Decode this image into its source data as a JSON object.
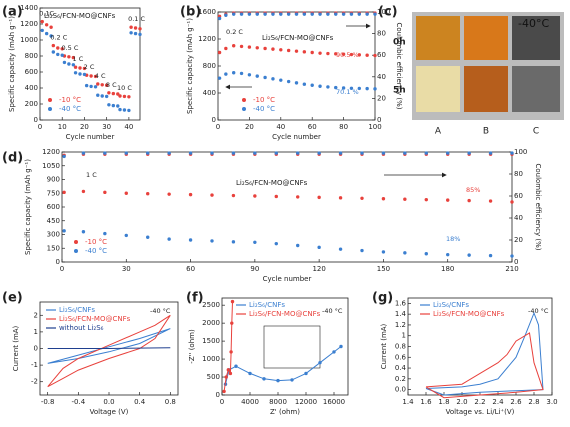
{
  "chart_data": [
    {
      "type": "line",
      "panel_label": "(a)",
      "title": "Li₂S₆/FCN-MO@CNFs",
      "xlabel": "Cycle number",
      "ylabel": "Specific capacity (mAh g⁻¹)",
      "xlim": [
        0,
        45
      ],
      "xticks": [
        0,
        10,
        20,
        30,
        40
      ],
      "ylim": [
        0,
        1400
      ],
      "yticks": [
        0,
        200,
        400,
        600,
        800,
        1000,
        1200,
        1400
      ],
      "marker": true,
      "line": false,
      "legend": "lower left",
      "annotations": [
        "0.1C",
        "0.2 C",
        "0.5 C",
        "1 C",
        "2 C",
        "4 C",
        "8 C",
        "10 C",
        "0.1 C"
      ],
      "series": [
        {
          "name": "-10 °C",
          "color": "#e8413c",
          "x": [
            1,
            3,
            5,
            6,
            8,
            10,
            11,
            13,
            15,
            16,
            18,
            20,
            21,
            23,
            25,
            26,
            28,
            30,
            31,
            33,
            35,
            36,
            38,
            40,
            41,
            43,
            45
          ],
          "values": [
            1230,
            1190,
            1160,
            930,
            900,
            890,
            800,
            790,
            780,
            660,
            650,
            645,
            560,
            550,
            545,
            450,
            440,
            435,
            340,
            330,
            325,
            300,
            295,
            290,
            1160,
            1150,
            1140
          ]
        },
        {
          "name": "-40 °C",
          "color": "#3b7fd0",
          "x": [
            1,
            3,
            5,
            6,
            8,
            10,
            11,
            13,
            15,
            16,
            18,
            20,
            21,
            23,
            25,
            26,
            28,
            30,
            31,
            33,
            35,
            36,
            38,
            40,
            41,
            43,
            45
          ],
          "values": [
            1120,
            1080,
            1050,
            850,
            820,
            810,
            720,
            700,
            690,
            590,
            575,
            570,
            430,
            420,
            415,
            310,
            300,
            295,
            190,
            180,
            175,
            130,
            125,
            120,
            1090,
            1080,
            1070
          ]
        }
      ]
    },
    {
      "type": "line",
      "panel_label": "(b)",
      "title": "Li₂S₆/FCN-MO@CNFs",
      "xlabel": "Cycle number",
      "ylabel": "Specific capacity (mAh g⁻¹)",
      "y2label": "Coulombic efficiency (%)",
      "xlim": [
        0,
        100
      ],
      "xticks": [
        0,
        20,
        40,
        60,
        80,
        100
      ],
      "ylim": [
        0,
        1600
      ],
      "yticks": [
        0,
        400,
        800,
        1200,
        1600
      ],
      "y2lim": [
        0,
        100
      ],
      "y2ticks": [
        0,
        20,
        40,
        60,
        80,
        100
      ],
      "marker": true,
      "line": false,
      "legend": "lower left",
      "annotations": [
        "0.2 C",
        "90.5 %",
        "70.1 %"
      ],
      "series": [
        {
          "name": "-10 °C",
          "color": "#e8413c",
          "x": [
            1,
            5,
            10,
            15,
            20,
            25,
            30,
            35,
            40,
            45,
            50,
            55,
            60,
            65,
            70,
            75,
            80,
            85,
            90,
            95,
            100
          ],
          "values": [
            1000,
            1060,
            1100,
            1090,
            1080,
            1070,
            1060,
            1050,
            1040,
            1030,
            1020,
            1010,
            1000,
            990,
            985,
            980,
            975,
            970,
            965,
            960,
            955
          ]
        },
        {
          "name": "-40 °C",
          "color": "#3b7fd0",
          "x": [
            1,
            5,
            10,
            15,
            20,
            25,
            30,
            35,
            40,
            45,
            50,
            55,
            60,
            65,
            70,
            75,
            80,
            85,
            90,
            95,
            100
          ],
          "values": [
            620,
            680,
            700,
            690,
            670,
            650,
            630,
            610,
            590,
            570,
            550,
            530,
            515,
            500,
            490,
            480,
            475,
            470,
            468,
            465,
            462
          ]
        },
        {
          "color": "#e8413c",
          "axis": "y2",
          "x": [
            1,
            5,
            10,
            15,
            20,
            25,
            30,
            35,
            40,
            45,
            50,
            55,
            60,
            65,
            70,
            75,
            80,
            85,
            90,
            95,
            100
          ],
          "values": [
            96,
            98,
            99,
            99,
            99,
            99,
            99,
            99,
            99,
            99,
            99,
            99,
            99,
            99,
            99,
            99,
            99,
            99,
            99,
            99,
            99
          ]
        },
        {
          "color": "#3b7fd0",
          "axis": "y2",
          "x": [
            1,
            5,
            10,
            15,
            20,
            25,
            30,
            35,
            40,
            45,
            50,
            55,
            60,
            65,
            70,
            75,
            80,
            85,
            90,
            95,
            100
          ],
          "values": [
            94,
            97,
            98,
            98,
            98,
            98,
            98,
            98,
            98,
            98,
            98,
            98,
            98,
            98,
            98,
            98,
            98,
            98,
            98,
            98,
            98
          ]
        }
      ]
    },
    {
      "type": "line",
      "panel_label": "(d)",
      "title": "Li₂S₆/FCN-MO@CNFs",
      "xlabel": "Cycle number",
      "ylabel": "Specific capacity (mAh g⁻¹)",
      "y2label": "Coulombic efficiency (%)",
      "xlim": [
        0,
        210
      ],
      "xticks": [
        0,
        30,
        60,
        90,
        120,
        150,
        180,
        210
      ],
      "ylim": [
        0,
        1200
      ],
      "yticks": [
        0,
        150,
        300,
        450,
        600,
        750,
        900,
        1050,
        1200
      ],
      "y2lim": [
        0,
        100
      ],
      "y2ticks": [
        0,
        20,
        40,
        60,
        80,
        100
      ],
      "marker": true,
      "line": false,
      "legend": "lower left",
      "annotations": [
        "1 C",
        "85%",
        "18%"
      ],
      "series": [
        {
          "name": "-10 °C",
          "color": "#e8413c",
          "x": [
            1,
            10,
            20,
            30,
            40,
            50,
            60,
            70,
            80,
            90,
            100,
            110,
            120,
            130,
            140,
            150,
            160,
            170,
            180,
            190,
            200,
            210
          ],
          "values": [
            760,
            770,
            760,
            750,
            745,
            740,
            735,
            730,
            725,
            720,
            715,
            710,
            705,
            700,
            695,
            690,
            685,
            680,
            675,
            670,
            665,
            655
          ]
        },
        {
          "name": "-40 °C",
          "color": "#3b7fd0",
          "x": [
            1,
            10,
            20,
            30,
            40,
            50,
            60,
            70,
            80,
            90,
            100,
            110,
            120,
            130,
            140,
            150,
            160,
            170,
            180,
            190,
            200,
            210
          ],
          "values": [
            340,
            330,
            310,
            290,
            270,
            250,
            240,
            230,
            220,
            215,
            200,
            180,
            160,
            140,
            125,
            110,
            100,
            90,
            80,
            75,
            70,
            65
          ]
        },
        {
          "color": "#e8413c",
          "axis": "y2",
          "x": [
            1,
            10,
            20,
            30,
            40,
            50,
            60,
            70,
            80,
            90,
            100,
            110,
            120,
            130,
            140,
            150,
            160,
            170,
            180,
            190,
            200,
            210
          ],
          "values": [
            97,
            98,
            98,
            98,
            98,
            98,
            98,
            98,
            98,
            98,
            98,
            98,
            98,
            98,
            98,
            98,
            98,
            98,
            98,
            98,
            98,
            98
          ]
        },
        {
          "color": "#3b7fd0",
          "axis": "y2",
          "x": [
            1,
            10,
            20,
            30,
            40,
            50,
            60,
            70,
            80,
            90,
            100,
            110,
            120,
            130,
            140,
            150,
            160,
            170,
            180,
            190,
            200,
            210
          ],
          "values": [
            96,
            99,
            99,
            99,
            99,
            99,
            99,
            99,
            99,
            99,
            99,
            99,
            99,
            99,
            99,
            99,
            99,
            99,
            99,
            99,
            99,
            99
          ]
        }
      ]
    },
    {
      "type": "line",
      "panel_label": "(e)",
      "xlabel": "Voltage (V)",
      "ylabel": "Current (mA)",
      "xlim": [
        -0.9,
        0.9
      ],
      "xticks": [
        -0.8,
        -0.4,
        {
          "value": 0,
          "label": "0.0"
        },
        0.4,
        0.8
      ],
      "ylim": [
        -2.8,
        2.8
      ],
      "yticks": [
        -2,
        -1,
        0,
        1,
        2
      ],
      "marker": false,
      "line": true,
      "legend": "upper left",
      "annotations": [
        "-40 °C"
      ],
      "series": [
        {
          "name": "Li₂S₆/CNFs",
          "color": "#3b7fd0",
          "x": [
            -0.8,
            -0.4,
            0,
            0.4,
            0.8,
            0.4,
            0,
            -0.4,
            -0.8
          ],
          "values": [
            -0.9,
            -0.4,
            0.1,
            0.6,
            1.2,
            0.3,
            -0.2,
            -0.6,
            -0.9
          ]
        },
        {
          "name": "Li₂S₆/FCN-MO@CNFs",
          "color": "#e8413c",
          "x": [
            -0.8,
            -0.6,
            -0.4,
            0,
            0.4,
            0.6,
            0.8,
            0.6,
            0.4,
            0,
            -0.4,
            -0.6,
            -0.8
          ],
          "values": [
            -2.3,
            -1.2,
            -0.6,
            0.2,
            1,
            1.4,
            2,
            0.6,
            0,
            -0.6,
            -1.3,
            -1.8,
            -2.3
          ]
        },
        {
          "name": "without Li₂S₆",
          "color": "#1f3f8f",
          "x": [
            -0.8,
            0,
            0.8
          ],
          "values": [
            0,
            0,
            0.05
          ]
        }
      ]
    },
    {
      "type": "line",
      "panel_label": "(f)",
      "xlabel": "Z' (ohm)",
      "ylabel": "-Z'' (ohm)",
      "xlim": [
        0,
        18000
      ],
      "xticks": [
        0,
        4000,
        8000,
        12000,
        16000
      ],
      "ylim": [
        0,
        2700
      ],
      "yticks": [
        0,
        500,
        1000,
        1500,
        2000,
        2500
      ],
      "marker": true,
      "line": true,
      "legend": "upper left",
      "annotations": [
        "-40 °C"
      ],
      "series": [
        {
          "name": "Li₂S₆/CNFs",
          "color": "#3b7fd0",
          "x": [
            500,
            1000,
            2000,
            4000,
            6000,
            8000,
            10000,
            12000,
            14000,
            16000,
            17000
          ],
          "values": [
            300,
            700,
            800,
            600,
            450,
            400,
            420,
            600,
            900,
            1200,
            1350
          ]
        },
        {
          "name": "Li₂S₆/FCN-MO@CNFs",
          "color": "#e8413c",
          "x": [
            300,
            600,
            900,
            1200,
            1300,
            1400,
            1500
          ],
          "values": [
            100,
            500,
            700,
            600,
            1200,
            2000,
            2600
          ]
        }
      ]
    },
    {
      "type": "line",
      "panel_label": "(g)",
      "xlabel": "Voltage vs. Li/Li⁺(V)",
      "ylabel": "Current (mA)",
      "xlim": [
        1.4,
        3.0
      ],
      "xticks": [
        1.4,
        1.6,
        1.8,
        {
          "value": 2,
          "label": "2.0"
        },
        2.2,
        2.4,
        2.6,
        2.8,
        {
          "value": 3,
          "label": "3.0"
        }
      ],
      "ylim": [
        -0.1,
        1.7
      ],
      "yticks": [
        {
          "value": 0,
          "label": "0.0"
        },
        0.2,
        0.4,
        0.6,
        0.8,
        1,
        1.2,
        1.4,
        1.6
      ],
      "marker": false,
      "line": true,
      "legend": "upper left",
      "annotations": [
        "-40 °C"
      ],
      "series": [
        {
          "name": "Li₂S₆/CNFs",
          "color": "#3b7fd0",
          "x": [
            1.6,
            2,
            2.2,
            2.4,
            2.6,
            2.7,
            2.8,
            2.85,
            2.9,
            2.6,
            2.2,
            1.8,
            1.6
          ],
          "values": [
            0.02,
            0.05,
            0.1,
            0.2,
            0.6,
            1,
            1.42,
            1.2,
            0,
            -0.02,
            -0.05,
            -0.1,
            0.02
          ]
        },
        {
          "name": "Li₂S₆/FCN-MO@CNFs",
          "color": "#e8413c",
          "x": [
            1.6,
            2,
            2.2,
            2.4,
            2.5,
            2.6,
            2.7,
            2.75,
            2.8,
            2.9,
            2.6,
            2.2,
            1.8,
            1.6
          ],
          "values": [
            0.05,
            0.1,
            0.3,
            0.5,
            0.65,
            0.9,
            1,
            1.05,
            0.5,
            0,
            -0.05,
            -0.1,
            -0.15,
            0.05
          ]
        }
      ]
    }
  ],
  "photo": {
    "panel_label": "(c)",
    "temperature": "-40°C",
    "rows": [
      "0h",
      "5h"
    ],
    "columns": [
      "A",
      "B",
      "C"
    ]
  }
}
